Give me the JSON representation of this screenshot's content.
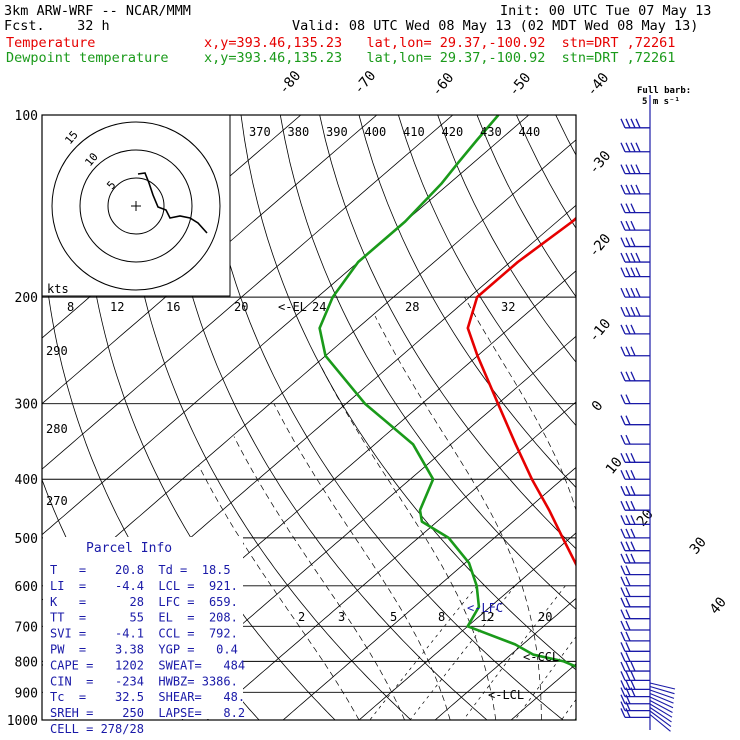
{
  "header": {
    "model": "3km ARW-WRF -- NCAR/MMM",
    "init": "Init: 00 UTC Tue 07 May 13",
    "fcst": "Fcst.    32 h",
    "valid": "Valid: 08 UTC Wed 08 May 13 (02 MDT Wed 08 May 13)",
    "temp_label": "Temperature",
    "dew_label": "Dewpoint temperature",
    "location": "x,y=393.46,135.23   lat,lon= 29.37,-100.92  stn=DRT ,72261"
  },
  "colors": {
    "temperature": "#e60000",
    "dewpoint": "#1a9a1a",
    "barbs": "#1a1aa8",
    "axes": "#000000"
  },
  "chart_data": {
    "type": "line",
    "pressure_levels": [
      100,
      200,
      300,
      400,
      500,
      600,
      700,
      800,
      900,
      1000
    ],
    "isotherm_labels": [
      -80,
      -70,
      -60,
      -50,
      -40,
      -30,
      -20,
      -10,
      0,
      10,
      20,
      30,
      40
    ],
    "theta_labels": [
      370,
      380,
      390,
      400,
      410,
      420,
      430,
      440
    ],
    "theta_side_labels": [
      290,
      280,
      270
    ],
    "mixing_ratio_labels": [
      2,
      3,
      5,
      8,
      12,
      20
    ],
    "hodograph_ring_labels": [
      "8",
      "12",
      "16",
      "20",
      "24",
      "28",
      "32"
    ],
    "hodograph_units": "kts",
    "hodograph_ring_markers": [
      "15",
      "10",
      "5"
    ],
    "barb_legend": "Full barb:\n5 m s⁻¹",
    "level_labels": {
      "el": "<-EL",
      "lfc": "<-LFC",
      "ccl": "<-CCL",
      "lcl": "<-LCL"
    },
    "series": [
      {
        "name": "Temperature",
        "p": [
          1000,
          980,
          960,
          940,
          920,
          900,
          880,
          860,
          840,
          820,
          800,
          780,
          750,
          700,
          650,
          600,
          550,
          500,
          450,
          400,
          350,
          300,
          250,
          225,
          200,
          175,
          150,
          140,
          130,
          120,
          110,
          100
        ],
        "t": [
          20.8,
          22,
          22.5,
          25,
          26.3,
          25,
          24,
          22,
          19.5,
          17.5,
          16,
          14,
          11.5,
          8,
          4,
          -0.5,
          -5.5,
          -11,
          -17,
          -24,
          -31.5,
          -40,
          -50,
          -55.5,
          -59,
          -59,
          -58,
          -58,
          -61,
          -63.5,
          -65.5,
          -68
        ]
      },
      {
        "name": "Dewpoint temperature",
        "p": [
          1000,
          980,
          960,
          940,
          920,
          900,
          880,
          860,
          840,
          820,
          800,
          780,
          750,
          700,
          650,
          600,
          550,
          500,
          470,
          450,
          400,
          350,
          300,
          250,
          225,
          200,
          175,
          150,
          130,
          120,
          110,
          100
        ],
        "t": [
          18.5,
          18.5,
          19,
          18.5,
          17,
          15.2,
          15.5,
          14.5,
          13,
          11,
          8,
          3,
          -1,
          -10,
          -11.5,
          -15,
          -19.5,
          -26,
          -32,
          -34,
          -37,
          -45,
          -57.5,
          -70,
          -75,
          -78,
          -80,
          -80,
          -81,
          -82,
          -83,
          -84
        ]
      }
    ],
    "wind_barbs": [
      {
        "p": 105,
        "n": 4
      },
      {
        "p": 115,
        "n": 4
      },
      {
        "p": 125,
        "n": 4
      },
      {
        "p": 135,
        "n": 4
      },
      {
        "p": 145,
        "n": 3
      },
      {
        "p": 155,
        "n": 3
      },
      {
        "p": 165,
        "n": 3
      },
      {
        "p": 175,
        "n": 4
      },
      {
        "p": 185,
        "n": 4
      },
      {
        "p": 200,
        "n": 4
      },
      {
        "p": 215,
        "n": 4
      },
      {
        "p": 230,
        "n": 3
      },
      {
        "p": 250,
        "n": 3
      },
      {
        "p": 275,
        "n": 3
      },
      {
        "p": 300,
        "n": 2
      },
      {
        "p": 325,
        "n": 2
      },
      {
        "p": 350,
        "n": 2
      },
      {
        "p": 375,
        "n": 3
      },
      {
        "p": 400,
        "n": 3
      },
      {
        "p": 425,
        "n": 3
      },
      {
        "p": 450,
        "n": 3
      },
      {
        "p": 475,
        "n": 3
      },
      {
        "p": 500,
        "n": 3
      },
      {
        "p": 525,
        "n": 3
      },
      {
        "p": 550,
        "n": 3
      },
      {
        "p": 575,
        "n": 2
      },
      {
        "p": 600,
        "n": 2
      },
      {
        "p": 625,
        "n": 2
      },
      {
        "p": 650,
        "n": 2
      },
      {
        "p": 680,
        "n": 2
      },
      {
        "p": 710,
        "n": 2
      },
      {
        "p": 740,
        "n": 2
      },
      {
        "p": 770,
        "n": 2
      },
      {
        "p": 800,
        "n": 2
      },
      {
        "p": 830,
        "n": 3
      },
      {
        "p": 860,
        "n": 3
      },
      {
        "p": 890,
        "n": 3
      },
      {
        "p": 915,
        "n": 3
      },
      {
        "p": 940,
        "n": 2
      },
      {
        "p": 965,
        "n": 2
      },
      {
        "p": 990,
        "n": 2
      }
    ]
  },
  "parcel_info": {
    "title": "Parcel Info",
    "rows": [
      "T   =    20.8  Td =  18.5",
      "LI  =    -4.4  LCL =  921.",
      "K   =      28  LFC =  659.",
      "TT  =      55  EL  =  208.",
      "SVI =    -4.1  CCL =  792.",
      "PW  =    3.38  YGP =   0.4",
      "CAPE =   1202  SWEAT=   484",
      "CIN  =   -234  HWBZ= 3386.",
      "Tc  =    32.5  SHEAR=   48.",
      "SREH =    250  LAPSE=   8.2",
      "CELL = 278/28"
    ]
  }
}
